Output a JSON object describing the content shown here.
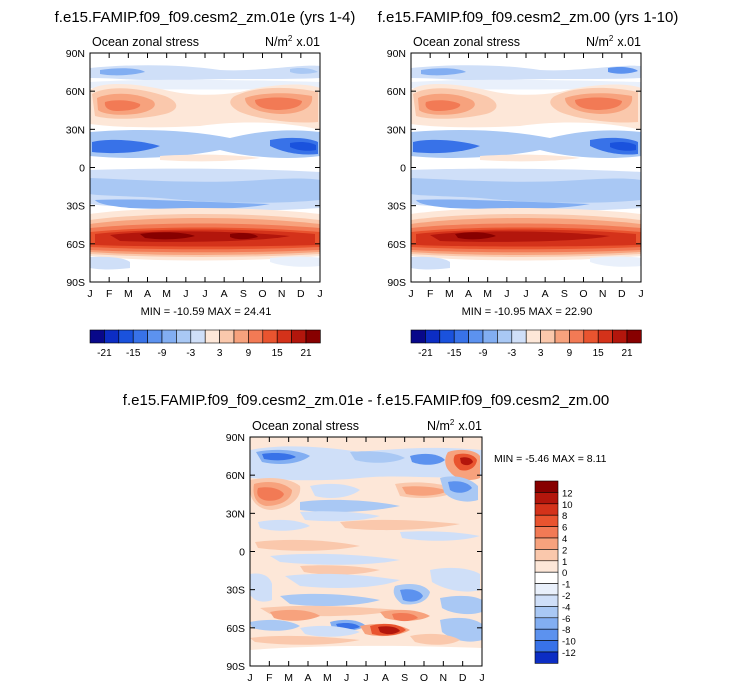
{
  "colors": {
    "bg": "#ffffff",
    "blues": [
      "#08088a",
      "#0c2dc4",
      "#1a52dd",
      "#3872e8",
      "#5c92ef",
      "#82aef2",
      "#a9c8f4",
      "#cfdff8",
      "#e9f0fb"
    ],
    "reds": [
      "#fde7d8",
      "#fac8ac",
      "#f7a27d",
      "#f27a55",
      "#e9542f",
      "#d4321a",
      "#b3160c",
      "#870000"
    ],
    "white": "#ffffff"
  },
  "chart_data": [
    {
      "type": "heatmap",
      "title": "f.e15.FAMIP.f09_f09.cesm2_zm.01e (yrs 1-4)",
      "left_label": "Ocean zonal stress",
      "units_base": "N/m",
      "units_sup": "2",
      "units_scale": "x.01",
      "stats": "MIN = -10.59 MAX =  24.41",
      "x_ticks": [
        "J",
        "F",
        "M",
        "A",
        "M",
        "J",
        "J",
        "A",
        "S",
        "O",
        "N",
        "D",
        "J"
      ],
      "y_ticks": [
        "90N",
        "60N",
        "30N",
        "0",
        "30S",
        "60S",
        "90S"
      ],
      "ylim": [
        -90,
        90
      ],
      "levels": [
        -21,
        -18,
        -15,
        -12,
        -9,
        -6,
        -3,
        0,
        3,
        6,
        9,
        12,
        15,
        18,
        21,
        24
      ],
      "colorbar_labels": [
        "-21",
        "-15",
        "-9",
        "-3",
        "3",
        "9",
        "15",
        "21"
      ]
    },
    {
      "type": "heatmap",
      "title": "f.e15.FAMIP.f09_f09.cesm2_zm.00 (yrs 1-10)",
      "left_label": "Ocean zonal stress",
      "units_base": "N/m",
      "units_sup": "2",
      "units_scale": "x.01",
      "stats": "MIN = -10.95 MAX =  22.90",
      "x_ticks": [
        "J",
        "F",
        "M",
        "A",
        "M",
        "J",
        "J",
        "A",
        "S",
        "O",
        "N",
        "D",
        "J"
      ],
      "y_ticks": [
        "90N",
        "60N",
        "30N",
        "0",
        "30S",
        "60S",
        "90S"
      ],
      "ylim": [
        -90,
        90
      ],
      "levels": [
        -21,
        -18,
        -15,
        -12,
        -9,
        -6,
        -3,
        0,
        3,
        6,
        9,
        12,
        15,
        18,
        21,
        24
      ],
      "colorbar_labels": [
        "-21",
        "-15",
        "-9",
        "-3",
        "3",
        "9",
        "15",
        "21"
      ]
    },
    {
      "type": "heatmap",
      "title": "f.e15.FAMIP.f09_f09.cesm2_zm.01e - f.e15.FAMIP.f09_f09.cesm2_zm.00",
      "left_label": "Ocean zonal stress",
      "units_base": "N/m",
      "units_sup": "2",
      "units_scale": "x.01",
      "stats": "MIN =  -5.46 MAX =   8.11",
      "x_ticks": [
        "J",
        "F",
        "M",
        "A",
        "M",
        "J",
        "J",
        "A",
        "S",
        "O",
        "N",
        "D",
        "J"
      ],
      "y_ticks": [
        "90N",
        "60N",
        "30N",
        "0",
        "30S",
        "60S",
        "90S"
      ],
      "ylim": [
        -90,
        90
      ],
      "levels": [
        -12,
        -10,
        -8,
        -6,
        -4,
        -2,
        -1,
        0,
        1,
        2,
        4,
        6,
        8,
        10,
        12
      ],
      "colorbar_labels": [
        "12",
        "10",
        "8",
        "6",
        "4",
        "2",
        "1",
        "0",
        "-1",
        "-2",
        "-4",
        "-6",
        "-8",
        "-10",
        "-12"
      ]
    }
  ]
}
